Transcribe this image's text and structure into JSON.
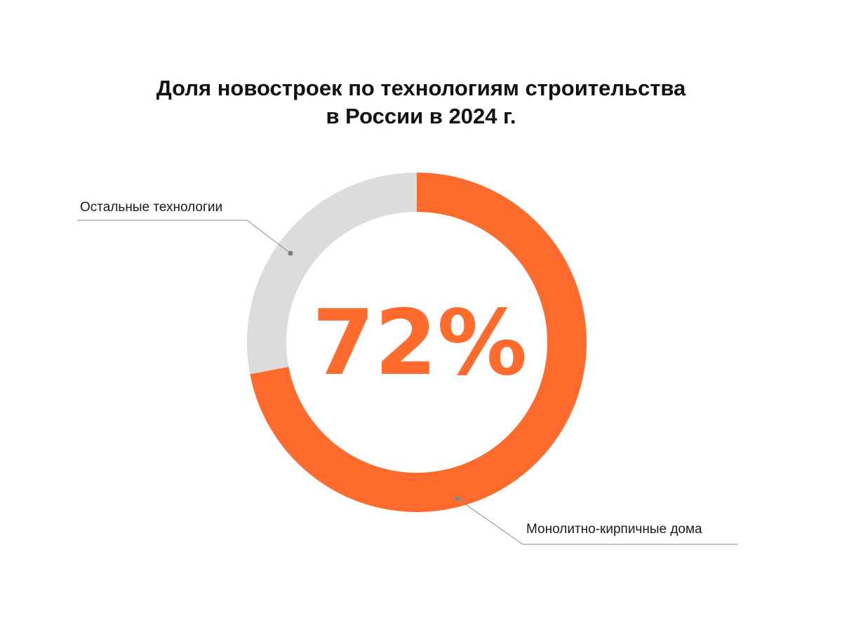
{
  "title_line1": "Доля новостроек по технологиям строительства",
  "title_line2": "в России в 2024 г.",
  "colors": {
    "primary": "#FF6B2C",
    "secondary": "#DCDCDC",
    "leader": "#8A8A8A"
  },
  "chart_data": {
    "type": "pie",
    "variant": "donut",
    "title": "Доля новостроек по технологиям строительства в России в 2024 г.",
    "center_label": "72%",
    "slices": [
      {
        "label": "Монолитно-кирпичные дома",
        "value": 72,
        "unit": "%",
        "color": "#FF6B2C"
      },
      {
        "label": "Остальные технологии",
        "value": 28,
        "unit": "%",
        "color": "#DCDCDC"
      }
    ],
    "start_angle": "12 o'clock",
    "direction": "clockwise",
    "legend": "callout labels"
  }
}
